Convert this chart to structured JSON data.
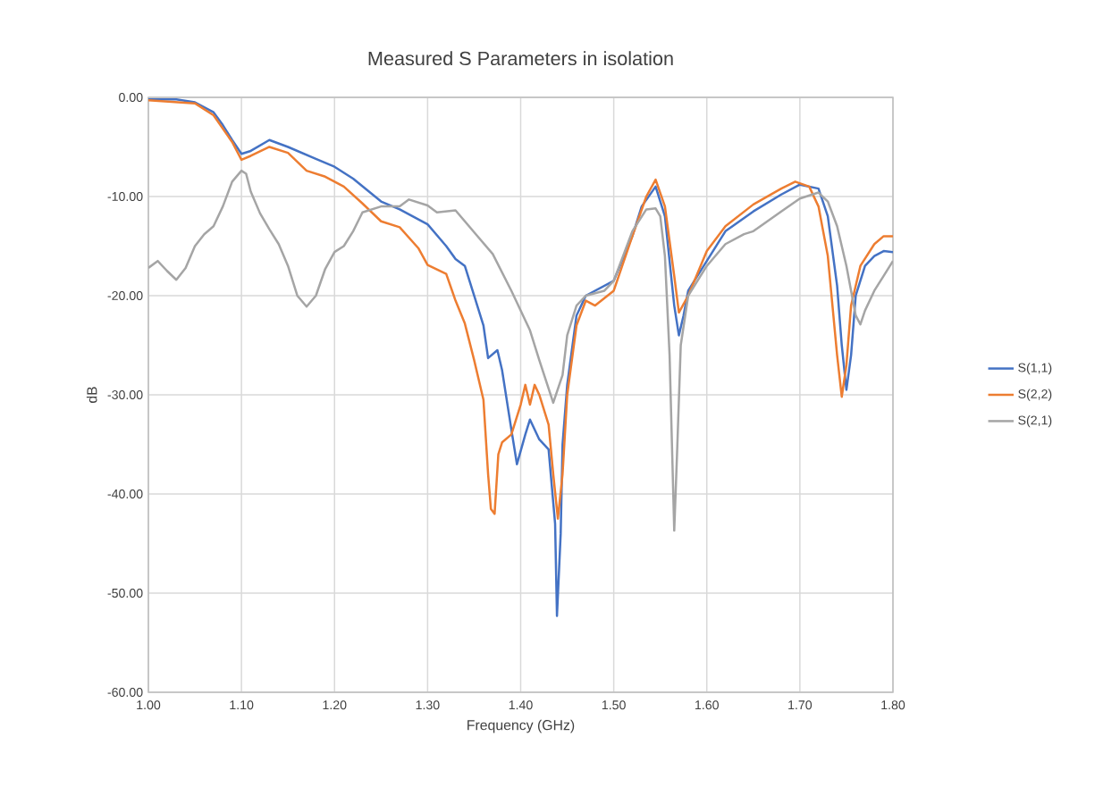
{
  "chart_data": {
    "type": "line",
    "title": "Measured S Parameters in isolation",
    "xlabel": "Frequency (GHz)",
    "ylabel": "dB",
    "xlim": [
      1.0,
      1.8
    ],
    "ylim": [
      -60,
      0
    ],
    "xticks": [
      {
        "value": 1.0,
        "label": "1.00"
      },
      {
        "value": 1.1,
        "label": "1.10"
      },
      {
        "value": 1.2,
        "label": "1.20"
      },
      {
        "value": 1.3,
        "label": "1.30"
      },
      {
        "value": 1.4,
        "label": "1.40"
      },
      {
        "value": 1.5,
        "label": "1.50"
      },
      {
        "value": 1.6,
        "label": "1.60"
      },
      {
        "value": 1.7,
        "label": "1.70"
      },
      {
        "value": 1.8,
        "label": "1.80"
      }
    ],
    "yticks": [
      {
        "value": 0,
        "label": "0.00"
      },
      {
        "value": -10,
        "label": "-10.00"
      },
      {
        "value": -20,
        "label": "-20.00"
      },
      {
        "value": -30,
        "label": "-30.00"
      },
      {
        "value": -40,
        "label": "-40.00"
      },
      {
        "value": -50,
        "label": "-50.00"
      },
      {
        "value": -60,
        "label": "-60.00"
      }
    ],
    "grid": true,
    "legend": "right",
    "series": [
      {
        "name": "S(1,1)",
        "color": "#4472c4",
        "x": [
          1.0,
          1.03,
          1.05,
          1.07,
          1.08,
          1.09,
          1.1,
          1.11,
          1.13,
          1.15,
          1.18,
          1.2,
          1.22,
          1.25,
          1.27,
          1.3,
          1.32,
          1.33,
          1.34,
          1.35,
          1.36,
          1.365,
          1.375,
          1.38,
          1.39,
          1.396,
          1.405,
          1.41,
          1.42,
          1.43,
          1.437,
          1.439,
          1.443,
          1.445,
          1.45,
          1.46,
          1.47,
          1.5,
          1.52,
          1.53,
          1.545,
          1.555,
          1.565,
          1.57,
          1.575,
          1.58,
          1.6,
          1.62,
          1.65,
          1.68,
          1.7,
          1.72,
          1.73,
          1.74,
          1.745,
          1.75,
          1.755,
          1.76,
          1.77,
          1.78,
          1.79,
          1.8
        ],
        "values": [
          -0.2,
          -0.2,
          -0.5,
          -1.5,
          -2.8,
          -4.3,
          -5.7,
          -5.4,
          -4.3,
          -5.0,
          -6.2,
          -7.0,
          -8.2,
          -10.5,
          -11.3,
          -12.8,
          -15.0,
          -16.3,
          -17.0,
          -20.0,
          -23.0,
          -26.3,
          -25.5,
          -27.5,
          -33.5,
          -37.0,
          -34.0,
          -32.5,
          -34.5,
          -35.5,
          -43.0,
          -52.3,
          -44.0,
          -35.0,
          -29.0,
          -22.0,
          -20.0,
          -18.5,
          -14.0,
          -11.0,
          -9.0,
          -12.0,
          -21.0,
          -24.0,
          -22.0,
          -19.5,
          -16.5,
          -13.5,
          -11.5,
          -9.8,
          -8.8,
          -9.2,
          -12.0,
          -19.0,
          -25.0,
          -29.5,
          -26.0,
          -20.0,
          -17.0,
          -16.0,
          -15.5,
          -15.6
        ]
      },
      {
        "name": "S(2,2)",
        "color": "#ed7d31",
        "x": [
          1.0,
          1.05,
          1.07,
          1.09,
          1.1,
          1.11,
          1.13,
          1.15,
          1.17,
          1.19,
          1.21,
          1.23,
          1.25,
          1.27,
          1.29,
          1.3,
          1.32,
          1.33,
          1.34,
          1.35,
          1.36,
          1.365,
          1.368,
          1.372,
          1.376,
          1.38,
          1.39,
          1.4,
          1.405,
          1.41,
          1.415,
          1.42,
          1.43,
          1.435,
          1.44,
          1.445,
          1.45,
          1.46,
          1.47,
          1.48,
          1.5,
          1.52,
          1.535,
          1.545,
          1.555,
          1.565,
          1.57,
          1.58,
          1.6,
          1.62,
          1.65,
          1.68,
          1.695,
          1.71,
          1.72,
          1.73,
          1.74,
          1.745,
          1.75,
          1.755,
          1.765,
          1.78,
          1.79,
          1.8
        ],
        "values": [
          -0.3,
          -0.6,
          -1.8,
          -4.5,
          -6.3,
          -5.9,
          -5.0,
          -5.6,
          -7.4,
          -8.0,
          -9.0,
          -10.7,
          -12.5,
          -13.1,
          -15.2,
          -16.9,
          -17.8,
          -20.5,
          -22.8,
          -26.5,
          -30.5,
          -38.0,
          -41.5,
          -42.0,
          -36.0,
          -34.8,
          -34.0,
          -31.0,
          -29.0,
          -31.0,
          -29.0,
          -30.0,
          -33.0,
          -38.0,
          -42.5,
          -38.0,
          -30.0,
          -23.0,
          -20.5,
          -21.0,
          -19.5,
          -14.0,
          -10.0,
          -8.3,
          -11.0,
          -18.0,
          -21.7,
          -20.0,
          -15.5,
          -13.0,
          -10.8,
          -9.2,
          -8.5,
          -9.0,
          -11.0,
          -16.0,
          -26.0,
          -30.2,
          -27.0,
          -21.0,
          -17.0,
          -14.8,
          -14.0,
          -14.0
        ]
      },
      {
        "name": "S(2,1)",
        "color": "#a5a5a5",
        "x": [
          1.0,
          1.01,
          1.02,
          1.03,
          1.04,
          1.05,
          1.06,
          1.07,
          1.08,
          1.09,
          1.1,
          1.105,
          1.11,
          1.12,
          1.13,
          1.14,
          1.15,
          1.16,
          1.17,
          1.18,
          1.19,
          1.2,
          1.21,
          1.22,
          1.23,
          1.25,
          1.27,
          1.28,
          1.3,
          1.31,
          1.33,
          1.35,
          1.37,
          1.39,
          1.41,
          1.42,
          1.435,
          1.445,
          1.45,
          1.46,
          1.47,
          1.49,
          1.5,
          1.52,
          1.535,
          1.545,
          1.55,
          1.555,
          1.56,
          1.565,
          1.568,
          1.572,
          1.58,
          1.6,
          1.62,
          1.64,
          1.65,
          1.68,
          1.7,
          1.72,
          1.73,
          1.74,
          1.75,
          1.76,
          1.765,
          1.77,
          1.78,
          1.79,
          1.8
        ],
        "values": [
          -17.2,
          -16.5,
          -17.5,
          -18.4,
          -17.2,
          -15.0,
          -13.8,
          -13.0,
          -11.0,
          -8.5,
          -7.4,
          -7.7,
          -9.5,
          -11.7,
          -13.3,
          -14.8,
          -17.0,
          -20.0,
          -21.1,
          -20.0,
          -17.3,
          -15.6,
          -15.0,
          -13.5,
          -11.6,
          -11.0,
          -11.0,
          -10.3,
          -10.9,
          -11.6,
          -11.4,
          -13.6,
          -15.8,
          -19.5,
          -23.5,
          -26.5,
          -30.8,
          -28.0,
          -24.0,
          -21.0,
          -20.0,
          -19.5,
          -18.5,
          -13.5,
          -11.3,
          -11.2,
          -12.0,
          -16.0,
          -26.0,
          -43.7,
          -36.0,
          -25.0,
          -20.0,
          -17.0,
          -14.8,
          -13.8,
          -13.5,
          -11.5,
          -10.2,
          -9.6,
          -10.5,
          -13.0,
          -17.0,
          -22.0,
          -22.9,
          -21.5,
          -19.5,
          -18.0,
          -16.5
        ]
      }
    ]
  }
}
